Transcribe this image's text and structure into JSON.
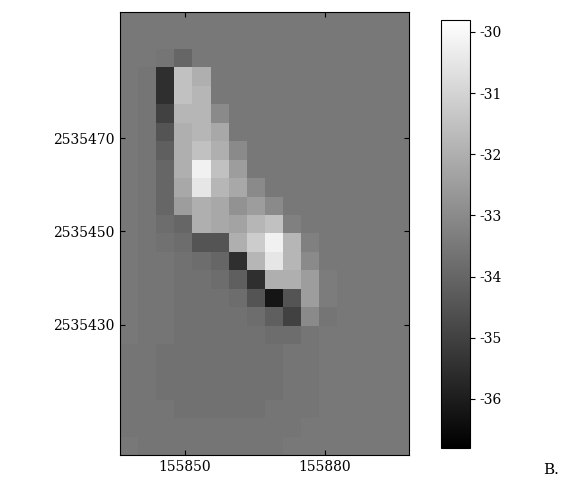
{
  "chart_data": {
    "type": "heatmap",
    "xlim": [
      155836,
      155898
    ],
    "ylim": [
      2535402,
      2535497
    ],
    "xticks": [
      155850,
      155880
    ],
    "yticks": [
      2535430,
      2535450,
      2535470
    ],
    "colorbar_lim": [
      -36.8,
      -29.8
    ],
    "colorbar_ticks": [
      -36,
      -35,
      -34,
      -33,
      -32,
      -31,
      -30
    ],
    "annotation": "B.",
    "cells": [
      [
        -33.5,
        -33.5,
        -33.5,
        -33.5,
        -33.5,
        -33.5,
        -33.5,
        -33.5,
        -33.5,
        -33.5,
        -33.5,
        -33.5,
        -33.5,
        -33.5,
        -33.5,
        -33.5
      ],
      [
        -33.5,
        -33.5,
        -33.5,
        -33.5,
        -33.5,
        -33.5,
        -33.5,
        -33.5,
        -33.5,
        -33.5,
        -33.5,
        -33.5,
        -33.5,
        -33.5,
        -33.5,
        -33.5
      ],
      [
        -33.5,
        -33.5,
        -33.6,
        -34.0,
        -33.5,
        -33.5,
        -33.5,
        -33.5,
        -33.5,
        -33.5,
        -33.5,
        -33.5,
        -33.5,
        -33.5,
        -33.5,
        -33.5
      ],
      [
        -33.5,
        -33.6,
        -35.5,
        -31.5,
        -32.0,
        -33.5,
        -33.5,
        -33.5,
        -33.5,
        -33.5,
        -33.5,
        -33.5,
        -33.5,
        -33.5,
        -33.5,
        -33.5
      ],
      [
        -33.5,
        -33.6,
        -35.5,
        -31.5,
        -31.8,
        -33.5,
        -33.5,
        -33.5,
        -33.5,
        -33.5,
        -33.5,
        -33.5,
        -33.5,
        -33.5,
        -33.5,
        -33.5
      ],
      [
        -33.5,
        -33.6,
        -35.0,
        -31.8,
        -31.8,
        -33.0,
        -33.5,
        -33.5,
        -33.5,
        -33.5,
        -33.5,
        -33.5,
        -33.5,
        -33.5,
        -33.5,
        -33.5
      ],
      [
        -33.5,
        -33.6,
        -34.5,
        -32.0,
        -31.8,
        -32.2,
        -33.5,
        -33.5,
        -33.5,
        -33.5,
        -33.5,
        -33.5,
        -33.5,
        -33.5,
        -33.5,
        -33.5
      ],
      [
        -33.5,
        -33.6,
        -34.2,
        -32.0,
        -31.5,
        -32.0,
        -33.0,
        -33.5,
        -33.5,
        -33.5,
        -33.5,
        -33.5,
        -33.5,
        -33.5,
        -33.5,
        -33.5
      ],
      [
        -33.5,
        -33.6,
        -34.0,
        -32.0,
        -30.2,
        -31.5,
        -32.5,
        -33.5,
        -33.5,
        -33.5,
        -33.5,
        -33.5,
        -33.5,
        -33.5,
        -33.5,
        -33.5
      ],
      [
        -33.5,
        -33.6,
        -34.0,
        -32.2,
        -30.5,
        -31.8,
        -32.2,
        -33.0,
        -33.5,
        -33.5,
        -33.5,
        -33.5,
        -33.5,
        -33.5,
        -33.5,
        -33.5
      ],
      [
        -33.5,
        -33.6,
        -34.0,
        -32.5,
        -32.0,
        -32.2,
        -32.8,
        -32.5,
        -33.0,
        -33.5,
        -33.5,
        -33.5,
        -33.5,
        -33.5,
        -33.5,
        -33.5
      ],
      [
        -33.5,
        -33.6,
        -33.8,
        -34.0,
        -32.0,
        -32.2,
        -32.3,
        -31.8,
        -31.5,
        -33.3,
        -33.5,
        -33.5,
        -33.5,
        -33.5,
        -33.5,
        -33.5
      ],
      [
        -33.5,
        -33.6,
        -33.7,
        -33.8,
        -34.5,
        -34.5,
        -32.0,
        -31.2,
        -30.2,
        -31.8,
        -33.3,
        -33.5,
        -33.5,
        -33.5,
        -33.5,
        -33.5
      ],
      [
        -33.5,
        -33.6,
        -33.6,
        -33.7,
        -33.8,
        -34.0,
        -35.5,
        -31.8,
        -30.5,
        -31.8,
        -33.0,
        -33.5,
        -33.5,
        -33.5,
        -33.5,
        -33.5
      ],
      [
        -33.5,
        -33.6,
        -33.6,
        -33.7,
        -33.7,
        -33.8,
        -34.2,
        -35.5,
        -32.0,
        -32.0,
        -32.5,
        -33.4,
        -33.5,
        -33.5,
        -33.5,
        -33.5
      ],
      [
        -33.5,
        -33.6,
        -33.6,
        -33.7,
        -33.7,
        -33.7,
        -33.8,
        -34.5,
        -36.2,
        -34.5,
        -32.5,
        -33.4,
        -33.5,
        -33.5,
        -33.5,
        -33.5
      ],
      [
        -33.5,
        -33.6,
        -33.6,
        -33.7,
        -33.7,
        -33.7,
        -33.7,
        -33.8,
        -34.2,
        -35.0,
        -33.0,
        -33.6,
        -33.5,
        -33.5,
        -33.5,
        -33.5
      ],
      [
        -33.5,
        -33.6,
        -33.6,
        -33.7,
        -33.7,
        -33.7,
        -33.7,
        -33.7,
        -33.8,
        -33.8,
        -33.6,
        -33.5,
        -33.5,
        -33.5,
        -33.5,
        -33.5
      ],
      [
        -33.6,
        -33.6,
        -33.7,
        -33.7,
        -33.7,
        -33.7,
        -33.7,
        -33.7,
        -33.7,
        -33.6,
        -33.6,
        -33.5,
        -33.5,
        -33.5,
        -33.5,
        -33.5
      ],
      [
        -33.6,
        -33.6,
        -33.7,
        -33.7,
        -33.7,
        -33.7,
        -33.7,
        -33.7,
        -33.7,
        -33.6,
        -33.6,
        -33.5,
        -33.5,
        -33.5,
        -33.5,
        -33.5
      ],
      [
        -33.6,
        -33.6,
        -33.7,
        -33.7,
        -33.7,
        -33.7,
        -33.7,
        -33.7,
        -33.7,
        -33.6,
        -33.6,
        -33.5,
        -33.5,
        -33.5,
        -33.5,
        -33.5
      ],
      [
        -33.6,
        -33.6,
        -33.6,
        -33.7,
        -33.7,
        -33.7,
        -33.7,
        -33.7,
        -33.6,
        -33.6,
        -33.6,
        -33.5,
        -33.5,
        -33.5,
        -33.5,
        -33.5
      ],
      [
        -33.6,
        -33.6,
        -33.6,
        -33.6,
        -33.6,
        -33.6,
        -33.6,
        -33.6,
        -33.6,
        -33.6,
        -33.5,
        -33.5,
        -33.5,
        -33.5,
        -33.5,
        -33.5
      ],
      [
        -33.5,
        -33.6,
        -33.6,
        -33.6,
        -33.6,
        -33.6,
        -33.6,
        -33.6,
        -33.6,
        -33.5,
        -33.5,
        -33.5,
        -33.5,
        -33.5,
        -33.5,
        -33.5
      ]
    ]
  }
}
